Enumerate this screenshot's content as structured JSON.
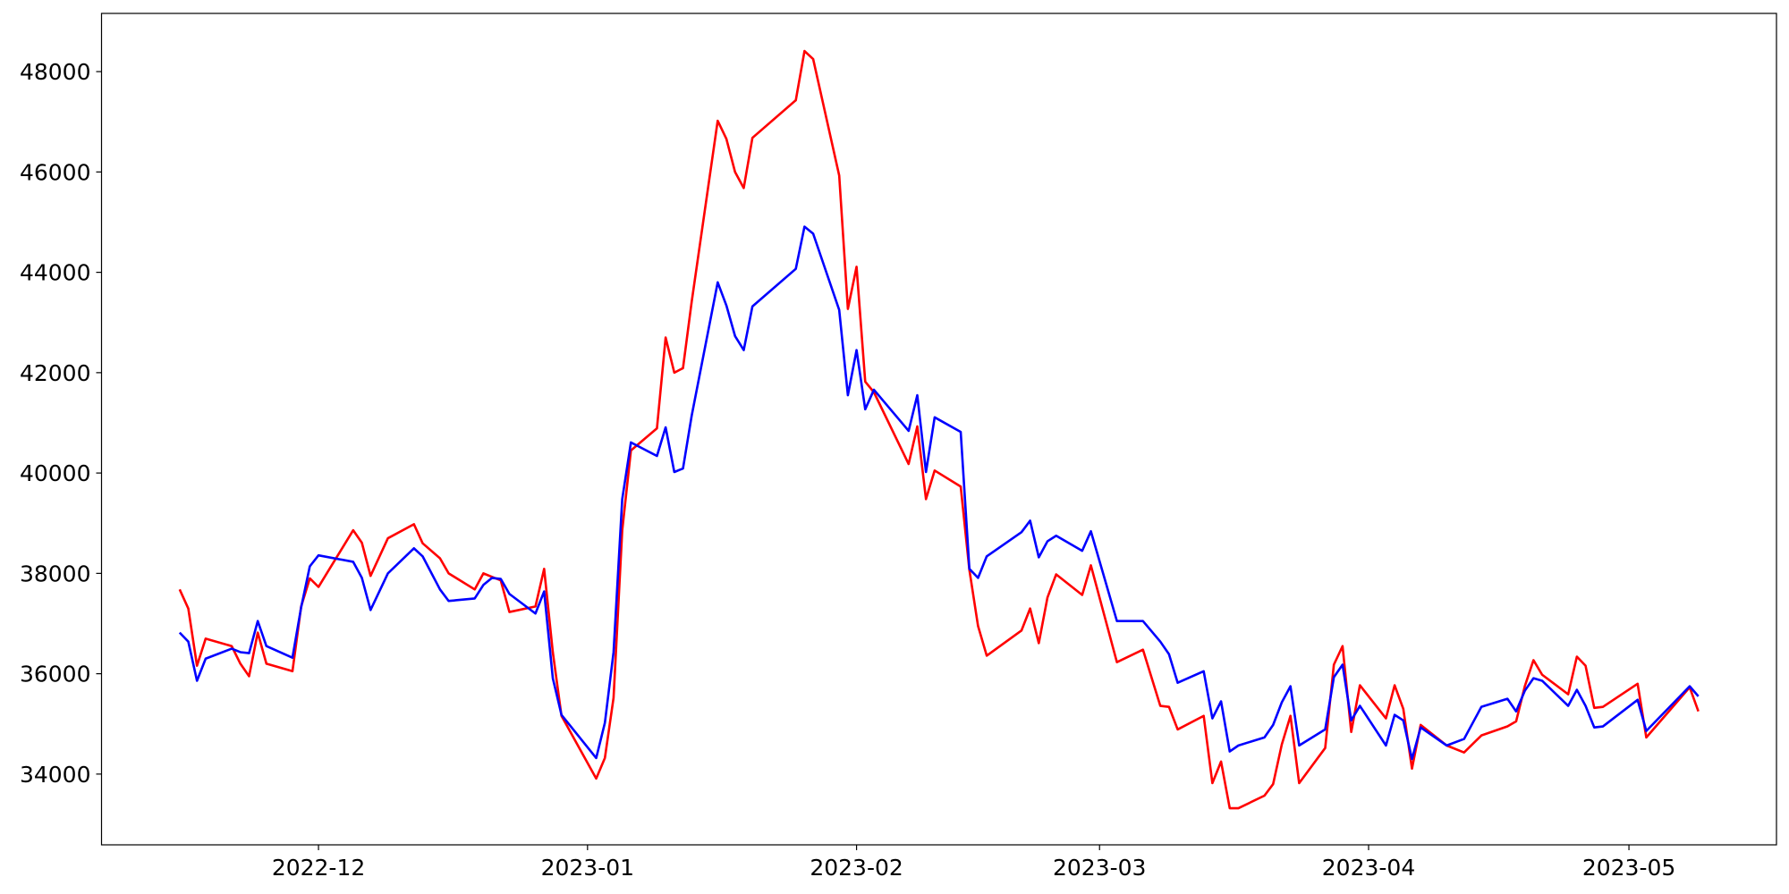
{
  "chart_data": {
    "type": "line",
    "x": [
      "2022-11-15",
      "2022-11-16",
      "2022-11-17",
      "2022-11-18",
      "2022-11-21",
      "2022-11-22",
      "2022-11-23",
      "2022-11-24",
      "2022-11-25",
      "2022-11-28",
      "2022-11-29",
      "2022-11-30",
      "2022-12-01",
      "2022-12-05",
      "2022-12-06",
      "2022-12-07",
      "2022-12-09",
      "2022-12-12",
      "2022-12-13",
      "2022-12-15",
      "2022-12-16",
      "2022-12-19",
      "2022-12-20",
      "2022-12-21",
      "2022-12-22",
      "2022-12-23",
      "2022-12-26",
      "2022-12-27",
      "2022-12-28",
      "2022-12-29",
      "2023-01-02",
      "2023-01-03",
      "2023-01-04",
      "2023-01-05",
      "2023-01-06",
      "2023-01-09",
      "2023-01-10",
      "2023-01-11",
      "2023-01-12",
      "2023-01-13",
      "2023-01-16",
      "2023-01-17",
      "2023-01-18",
      "2023-01-19",
      "2023-01-20",
      "2023-01-25",
      "2023-01-26",
      "2023-01-27",
      "2023-01-30",
      "2023-01-31",
      "2023-02-01",
      "2023-02-02",
      "2023-02-03",
      "2023-02-07",
      "2023-02-08",
      "2023-02-09",
      "2023-02-10",
      "2023-02-13",
      "2023-02-14",
      "2023-02-15",
      "2023-02-16",
      "2023-02-20",
      "2023-02-21",
      "2023-02-22",
      "2023-02-23",
      "2023-02-24",
      "2023-02-27",
      "2023-02-28",
      "2023-03-03",
      "2023-03-06",
      "2023-03-08",
      "2023-03-09",
      "2023-03-10",
      "2023-03-13",
      "2023-03-14",
      "2023-03-15",
      "2023-03-16",
      "2023-03-17",
      "2023-03-20",
      "2023-03-21",
      "2023-03-22",
      "2023-03-23",
      "2023-03-24",
      "2023-03-27",
      "2023-03-28",
      "2023-03-29",
      "2023-03-30",
      "2023-03-31",
      "2023-04-03",
      "2023-04-04",
      "2023-04-05",
      "2023-04-06",
      "2023-04-07",
      "2023-04-10",
      "2023-04-12",
      "2023-04-14",
      "2023-04-17",
      "2023-04-18",
      "2023-04-19",
      "2023-04-20",
      "2023-04-21",
      "2023-04-24",
      "2023-04-25",
      "2023-04-26",
      "2023-04-27",
      "2023-04-28",
      "2023-05-02",
      "2023-05-03",
      "2023-05-08",
      "2023-05-09"
    ],
    "series": [
      {
        "color": "#ff0000",
        "values": [
          37680,
          37300,
          36160,
          36700,
          36550,
          36200,
          35950,
          36820,
          36200,
          36050,
          37340,
          37900,
          37730,
          38860,
          38610,
          37950,
          38700,
          38980,
          38600,
          38300,
          38000,
          37680,
          38000,
          37930,
          37860,
          37230,
          37340,
          38090,
          36430,
          35160,
          33910,
          34320,
          35520,
          38860,
          40450,
          40890,
          42700,
          42000,
          42090,
          43410,
          47020,
          46660,
          46000,
          45680,
          46680,
          47430,
          48410,
          48250,
          45930,
          43270,
          44110,
          41820,
          41610,
          40180,
          40930,
          39480,
          40050,
          39730,
          38070,
          36950,
          36360,
          36860,
          37300,
          36610,
          37520,
          37980,
          37570,
          38160,
          36230,
          36480,
          35360,
          35340,
          34890,
          35160,
          33820,
          34250,
          33320,
          33320,
          33570,
          33800,
          34590,
          35160,
          33820,
          34520,
          36180,
          36550,
          34840,
          35770,
          35110,
          35770,
          35300,
          34110,
          34980,
          34570,
          34430,
          34770,
          34950,
          35050,
          35750,
          36270,
          35980,
          35590,
          36340,
          36160,
          35320,
          35340,
          35800,
          34730,
          35730,
          35250
        ]
      },
      {
        "color": "#0000ff",
        "values": [
          36820,
          36640,
          35860,
          36300,
          36500,
          36430,
          36410,
          37050,
          36550,
          36320,
          37320,
          38140,
          38360,
          38230,
          37910,
          37270,
          38000,
          38500,
          38340,
          37680,
          37450,
          37500,
          37770,
          37910,
          37890,
          37590,
          37200,
          37640,
          35910,
          35180,
          34320,
          35020,
          36430,
          39480,
          40610,
          40340,
          40910,
          40020,
          40090,
          41140,
          43800,
          43340,
          42730,
          42450,
          43320,
          44070,
          44910,
          44770,
          43250,
          41550,
          42450,
          41270,
          41660,
          40840,
          41550,
          40020,
          41110,
          40820,
          38090,
          37910,
          38340,
          38820,
          39050,
          38320,
          38640,
          38750,
          38450,
          38840,
          37050,
          37050,
          36640,
          36390,
          35820,
          36050,
          35110,
          35450,
          34450,
          34570,
          34730,
          34980,
          35430,
          35750,
          34570,
          34890,
          35930,
          36180,
          35070,
          35360,
          34570,
          35180,
          35070,
          34300,
          34930,
          34570,
          34700,
          35340,
          35500,
          35250,
          35660,
          35910,
          35860,
          35360,
          35680,
          35360,
          34930,
          34950,
          35480,
          34860,
          35750,
          35550
        ]
      }
    ],
    "xlim": [
      "2022-11-06",
      "2023-05-18"
    ],
    "xticks": [
      {
        "value": "2022-12-01",
        "label": "2022-12"
      },
      {
        "value": "2023-01-01",
        "label": "2023-01"
      },
      {
        "value": "2023-02-01",
        "label": "2023-02"
      },
      {
        "value": "2023-03-01",
        "label": "2023-03"
      },
      {
        "value": "2023-04-01",
        "label": "2023-04"
      },
      {
        "value": "2023-05-01",
        "label": "2023-05"
      }
    ],
    "ylim": [
      32590,
      49160
    ],
    "yticks": [
      34000,
      36000,
      38000,
      40000,
      42000,
      44000,
      46000,
      48000
    ],
    "grid": false
  }
}
